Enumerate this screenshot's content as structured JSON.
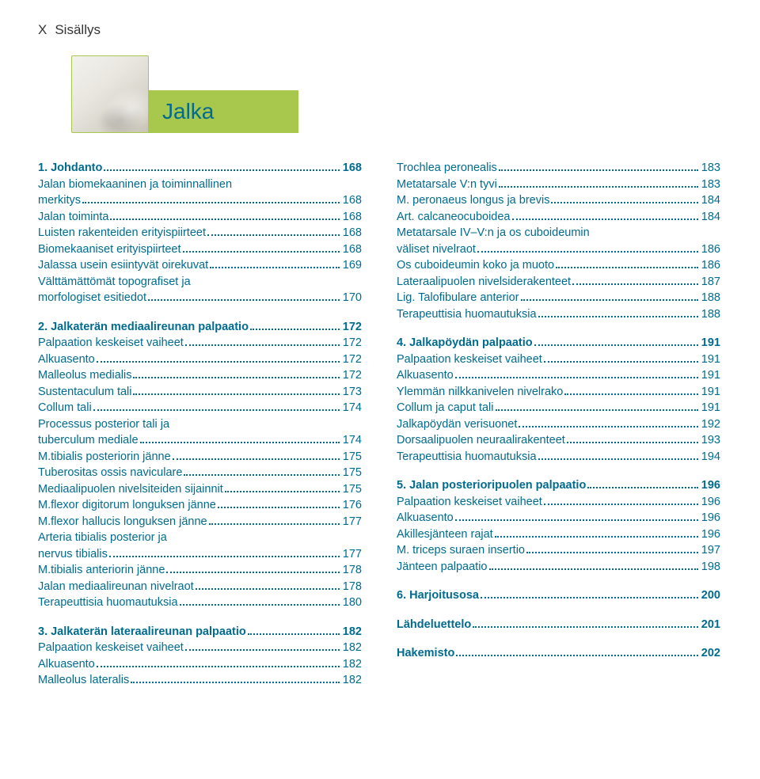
{
  "brand_color": "#006b8f",
  "accent_color": "#a8c74d",
  "header": {
    "page_label": "X",
    "title": "Sisällys"
  },
  "chapter": {
    "title": "Jalka"
  },
  "left_column": [
    {
      "type": "heading",
      "label": "1. Johdanto",
      "page": "168"
    },
    {
      "type": "wrapstart",
      "label": "Jalan biomekaaninen ja toiminnallinen"
    },
    {
      "type": "wrapend",
      "label": "merkitys",
      "page": "168"
    },
    {
      "type": "sub",
      "label": "Jalan toiminta",
      "page": "168"
    },
    {
      "type": "sub",
      "label": "Luisten rakenteiden erityispiirteet",
      "page": "168"
    },
    {
      "type": "sub",
      "label": "Biomekaaniset erityispiirteet",
      "page": "168"
    },
    {
      "type": "sub",
      "label": "Jalassa usein esiintyvät oirekuvat",
      "page": "169"
    },
    {
      "type": "wrapstart",
      "label": "Välttämättömät topografiset ja"
    },
    {
      "type": "wrapend",
      "label": "morfologiset esitiedot",
      "page": "170"
    },
    {
      "type": "gap"
    },
    {
      "type": "heading",
      "label": "2. Jalkaterän mediaalireunan palpaatio",
      "page": "172"
    },
    {
      "type": "sub",
      "label": "Palpaation keskeiset vaiheet",
      "page": "172"
    },
    {
      "type": "sub",
      "label": "Alkuasento",
      "page": "172"
    },
    {
      "type": "sub",
      "label": "Malleolus medialis",
      "page": "172"
    },
    {
      "type": "sub",
      "label": "Sustentaculum tali",
      "page": "173"
    },
    {
      "type": "sub",
      "label": "Collum tali",
      "page": "174"
    },
    {
      "type": "wrapstart",
      "label": "Processus posterior tali ja"
    },
    {
      "type": "wrapend",
      "label": "tuberculum mediale",
      "page": "174"
    },
    {
      "type": "sub",
      "label": "M.tibialis posteriorin jänne",
      "page": "175"
    },
    {
      "type": "sub",
      "label": "Tuberositas ossis naviculare",
      "page": "175"
    },
    {
      "type": "sub",
      "label": "Mediaalipuolen nivelsiteiden sijainnit",
      "page": "175"
    },
    {
      "type": "sub",
      "label": "M.flexor digitorum longuksen jänne",
      "page": "176"
    },
    {
      "type": "sub",
      "label": "M.flexor hallucis longuksen jänne",
      "page": "177"
    },
    {
      "type": "wrapstart",
      "label": "Arteria tibialis posterior ja"
    },
    {
      "type": "wrapend",
      "label": "nervus tibialis",
      "page": "177"
    },
    {
      "type": "sub",
      "label": "M.tibialis anteriorin jänne",
      "page": "178"
    },
    {
      "type": "sub",
      "label": "Jalan mediaalireunan nivelraot",
      "page": "178"
    },
    {
      "type": "sub",
      "label": "Terapeuttisia huomautuksia",
      "page": "180"
    },
    {
      "type": "gap"
    },
    {
      "type": "heading",
      "label": "3. Jalkaterän lateraalireunan palpaatio",
      "page": "182"
    },
    {
      "type": "sub",
      "label": "Palpaation keskeiset vaiheet",
      "page": "182"
    },
    {
      "type": "sub",
      "label": "Alkuasento",
      "page": "182"
    },
    {
      "type": "sub",
      "label": "Malleolus lateralis",
      "page": "182"
    }
  ],
  "right_column": [
    {
      "type": "sub",
      "label": "Trochlea peronealis",
      "page": "183"
    },
    {
      "type": "sub",
      "label": "Metatarsale V:n tyvi",
      "page": "183"
    },
    {
      "type": "sub",
      "label": "M. peronaeus longus ja brevis",
      "page": "184"
    },
    {
      "type": "sub",
      "label": "Art. calcaneocuboidea",
      "page": "184"
    },
    {
      "type": "wrapstart",
      "label": "Metatarsale IV–V:n ja os cuboideumin"
    },
    {
      "type": "wrapend",
      "label": "väliset nivelraot",
      "page": "186"
    },
    {
      "type": "sub",
      "label": "Os cuboideumin koko ja muoto",
      "page": "186"
    },
    {
      "type": "sub",
      "label": "Lateraalipuolen nivelsiderakenteet",
      "page": "187"
    },
    {
      "type": "sub",
      "label": "Lig. Talofibulare anterior",
      "page": "188"
    },
    {
      "type": "sub",
      "label": "Terapeuttisia huomautuksia",
      "page": "188"
    },
    {
      "type": "gap"
    },
    {
      "type": "heading",
      "label": "4. Jalkapöydän palpaatio",
      "page": "191"
    },
    {
      "type": "sub",
      "label": "Palpaation keskeiset vaiheet",
      "page": "191"
    },
    {
      "type": "sub",
      "label": "Alkuasento",
      "page": "191"
    },
    {
      "type": "sub",
      "label": "Ylemmän nilkkanivelen nivelrako",
      "page": "191"
    },
    {
      "type": "sub",
      "label": "Collum ja caput tali",
      "page": "191"
    },
    {
      "type": "sub",
      "label": "Jalkapöydän verisuonet",
      "page": "192"
    },
    {
      "type": "sub",
      "label": "Dorsaalipuolen neuraalirakenteet",
      "page": "193"
    },
    {
      "type": "sub",
      "label": "Terapeuttisia huomautuksia",
      "page": "194"
    },
    {
      "type": "gap"
    },
    {
      "type": "heading",
      "label": "5. Jalan posterioripuolen palpaatio",
      "page": "196"
    },
    {
      "type": "sub",
      "label": "Palpaation keskeiset vaiheet",
      "page": "196"
    },
    {
      "type": "sub",
      "label": "Alkuasento",
      "page": "196"
    },
    {
      "type": "sub",
      "label": "Akillesjänteen rajat",
      "page": "196"
    },
    {
      "type": "sub",
      "label": "M. triceps suraen insertio",
      "page": "197"
    },
    {
      "type": "sub",
      "label": "Jänteen palpaatio",
      "page": "198"
    },
    {
      "type": "gap"
    },
    {
      "type": "heading",
      "label": "6. Harjoitusosa",
      "page": "200"
    },
    {
      "type": "gap"
    },
    {
      "type": "heading",
      "label": "Lähdeluettelo",
      "page": "201"
    },
    {
      "type": "gap"
    },
    {
      "type": "heading",
      "label": "Hakemisto",
      "page": "202"
    }
  ]
}
